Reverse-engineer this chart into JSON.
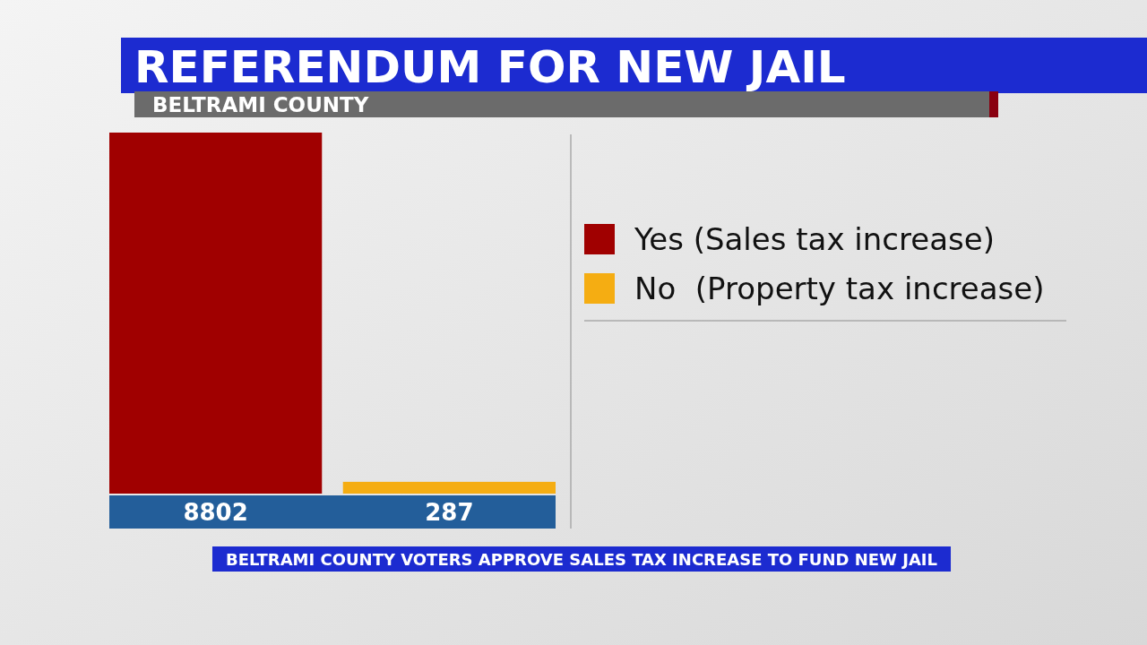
{
  "chart_data": {
    "type": "bar",
    "title": "REFERENDUM FOR NEW JAIL",
    "subtitle": "BELTRAMI COUNTY",
    "categories": [
      null,
      null
    ],
    "series": [
      {
        "name": "Yes (Sales tax increase)",
        "color": "#a00000",
        "values": [
          8802,
          null
        ]
      },
      {
        "name": "No  (Property tax increase)",
        "color": "#f5ad12",
        "values": [
          null,
          287
        ]
      }
    ],
    "stacked": true,
    "data_labels": true,
    "legend": "right",
    "annotations": [
      "BELTRAMI COUNTY VOTERS APPROVE SALES TAX INCREASE TO FUND NEW JAIL"
    ]
  }
}
